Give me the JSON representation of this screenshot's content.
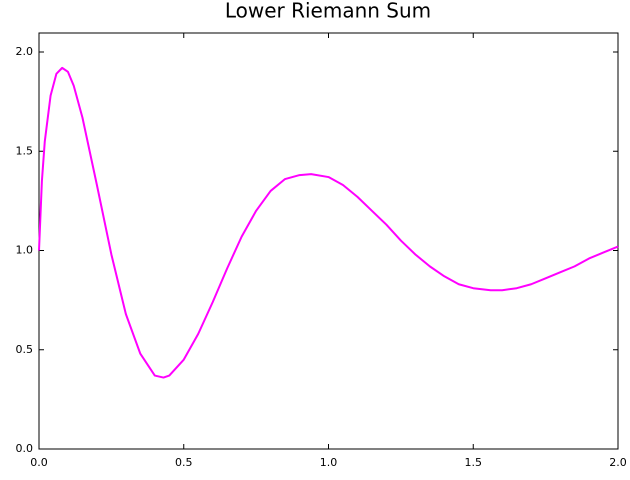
{
  "chart_data": {
    "type": "line",
    "title": "Lower Riemann Sum",
    "x": [
      0,
      0.01,
      0.02,
      0.04,
      0.06,
      0.08,
      0.1,
      0.12,
      0.15,
      0.2,
      0.25,
      0.3,
      0.35,
      0.4,
      0.43,
      0.45,
      0.5,
      0.55,
      0.6,
      0.65,
      0.7,
      0.75,
      0.8,
      0.85,
      0.9,
      0.94,
      1.0,
      1.05,
      1.1,
      1.15,
      1.2,
      1.25,
      1.3,
      1.35,
      1.4,
      1.45,
      1.5,
      1.56,
      1.6,
      1.65,
      1.7,
      1.75,
      1.8,
      1.85,
      1.9,
      1.95,
      2.0
    ],
    "series": [
      {
        "color": "#ff00ff",
        "values": [
          1.0,
          1.35,
          1.55,
          1.78,
          1.89,
          1.92,
          1.9,
          1.83,
          1.67,
          1.33,
          0.98,
          0.68,
          0.48,
          0.37,
          0.36,
          0.37,
          0.45,
          0.58,
          0.74,
          0.91,
          1.07,
          1.2,
          1.3,
          1.36,
          1.38,
          1.385,
          1.37,
          1.33,
          1.27,
          1.2,
          1.13,
          1.05,
          0.98,
          0.92,
          0.87,
          0.83,
          0.81,
          0.8,
          0.8,
          0.81,
          0.83,
          0.86,
          0.89,
          0.92,
          0.96,
          0.99,
          1.02
        ]
      }
    ],
    "xlim": [
      0,
      2
    ],
    "ylim": [
      0,
      2
    ],
    "xticks": [
      {
        "value": 0,
        "label": "0.0"
      },
      0.5,
      {
        "value": 1,
        "label": "1.0"
      },
      1.5,
      {
        "value": 2,
        "label": "2.0"
      }
    ],
    "yticks": [
      {
        "value": 0,
        "label": "0.0"
      },
      0.5,
      {
        "value": 1,
        "label": "1.0"
      },
      1.5,
      {
        "value": 2,
        "label": "2.0"
      }
    ],
    "grid": false
  }
}
